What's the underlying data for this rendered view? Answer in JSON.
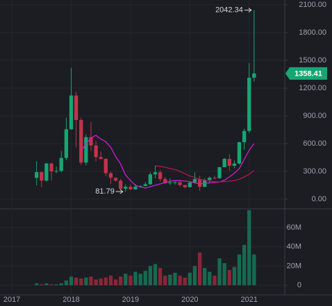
{
  "chart_data": {
    "type": "candlestick",
    "x": [
      2017.417,
      2017.5,
      2017.583,
      2017.667,
      2017.75,
      2017.833,
      2017.917,
      2018.0,
      2018.083,
      2018.167,
      2018.25,
      2018.333,
      2018.417,
      2018.5,
      2018.583,
      2018.667,
      2018.75,
      2018.833,
      2018.917,
      2019.0,
      2019.083,
      2019.167,
      2019.25,
      2019.333,
      2019.417,
      2019.5,
      2019.583,
      2019.667,
      2019.75,
      2019.833,
      2019.917,
      2020.0,
      2020.083,
      2020.167,
      2020.25,
      2020.333,
      2020.417,
      2020.5,
      2020.583,
      2020.667,
      2020.75,
      2020.833,
      2020.917,
      2021.0,
      2021.083
    ],
    "open": [
      230,
      292,
      200,
      385,
      300,
      305,
      445,
      755,
      1120,
      855,
      395,
      670,
      580,
      455,
      435,
      280,
      230,
      200,
      112,
      133,
      106,
      136,
      141,
      161,
      268,
      290,
      218,
      172,
      180,
      182,
      152,
      129,
      180,
      218,
      133,
      207,
      231,
      226,
      345,
      435,
      360,
      385,
      615,
      737,
      1312
    ],
    "high": [
      410,
      300,
      390,
      395,
      350,
      520,
      880,
      1420,
      1160,
      880,
      700,
      835,
      630,
      515,
      440,
      300,
      235,
      220,
      160,
      160,
      165,
      150,
      185,
      290,
      365,
      315,
      240,
      225,
      200,
      195,
      157,
      185,
      290,
      253,
      227,
      246,
      254,
      350,
      445,
      485,
      420,
      620,
      760,
      1470,
      2042.34
    ],
    "low": [
      150,
      130,
      190,
      200,
      280,
      290,
      420,
      750,
      560,
      370,
      365,
      520,
      410,
      430,
      250,
      165,
      190,
      100,
      81.79,
      100,
      101,
      127,
      140,
      155,
      225,
      190,
      163,
      153,
      155,
      138,
      117,
      126,
      180,
      88,
      130,
      176,
      215,
      220,
      345,
      308,
      335,
      375,
      535,
      715,
      1270
    ],
    "close": [
      292,
      200,
      385,
      300,
      305,
      445,
      755,
      1120,
      855,
      395,
      670,
      580,
      455,
      435,
      280,
      230,
      200,
      112,
      133,
      106,
      136,
      141,
      161,
      268,
      290,
      218,
      172,
      180,
      182,
      152,
      129,
      180,
      218,
      133,
      207,
      231,
      226,
      345,
      435,
      360,
      385,
      615,
      737,
      1312,
      1358.41
    ],
    "volume": [
      2000000,
      1000000,
      2000000,
      1000000,
      1000000,
      2000000,
      5000000,
      9000000,
      8000000,
      7000000,
      8000000,
      9000000,
      6000000,
      7000000,
      8000000,
      10000000,
      6000000,
      9000000,
      12000000,
      10000000,
      14000000,
      12000000,
      15000000,
      20000000,
      22000000,
      18000000,
      10000000,
      11000000,
      13000000,
      10000000,
      8000000,
      13000000,
      20000000,
      34000000,
      18000000,
      14000000,
      10000000,
      28000000,
      23000000,
      16000000,
      19000000,
      32000000,
      42000000,
      78000000,
      32000000
    ],
    "up_color": "#17a673",
    "down_color": "#c2334b",
    "volume_up_color": "#166a4f",
    "volume_down_color": "#8a2638",
    "indicators": [
      {
        "color": "#d41ad4",
        "values": [
          null,
          null,
          null,
          null,
          null,
          null,
          null,
          null,
          null,
          520,
          600,
          660,
          690,
          650,
          620,
          560,
          460,
          380,
          260,
          200,
          150,
          130,
          120,
          135,
          150,
          165,
          180,
          195,
          200,
          200,
          195,
          190,
          175,
          165,
          170,
          175,
          180,
          185,
          205,
          240,
          280,
          330,
          430,
          530,
          600
        ]
      },
      {
        "color": "#b5164f",
        "values": [
          null,
          null,
          null,
          null,
          null,
          null,
          null,
          null,
          null,
          null,
          null,
          null,
          null,
          null,
          null,
          null,
          null,
          null,
          null,
          null,
          null,
          null,
          null,
          null,
          360,
          355,
          345,
          330,
          320,
          300,
          275,
          250,
          235,
          215,
          205,
          195,
          190,
          185,
          190,
          195,
          200,
          215,
          240,
          270,
          310
        ]
      }
    ],
    "xlim": [
      2016.8,
      2021.6
    ],
    "xticks": [
      2017,
      2018,
      2019,
      2020,
      2021
    ],
    "ylim": [
      -105,
      2152
    ],
    "yticks": [
      {
        "value": 0,
        "label": "0.00"
      },
      {
        "value": 300,
        "label": "300.00"
      },
      {
        "value": 600,
        "label": "600.00"
      },
      {
        "value": 900,
        "label": "900.00"
      },
      {
        "value": 1200,
        "label": "1200.00"
      },
      {
        "value": 1500,
        "label": "1500.00"
      },
      {
        "value": 1800,
        "label": "1800.00"
      },
      {
        "value": 2100,
        "label": "2100.00"
      }
    ],
    "y2lim": [
      -10000000,
      70000000
    ],
    "y2ticks": [
      {
        "value": 0,
        "label": "0"
      },
      {
        "value": 20000000,
        "label": "20M"
      },
      {
        "value": 40000000,
        "label": "40M"
      },
      {
        "value": 60000000,
        "label": "60M"
      }
    ],
    "grid": true
  }
}
